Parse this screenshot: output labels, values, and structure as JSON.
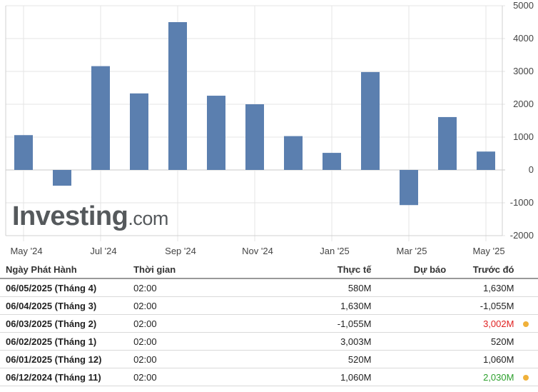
{
  "colors": {
    "bar": "#5b7faf",
    "grid": "#e4e4e4",
    "negative": "#e02020",
    "positive": "#2ca02c",
    "dot": "#f0b13a"
  },
  "logo": {
    "main": "Investing",
    "domain": ".com"
  },
  "chart_data": {
    "type": "bar",
    "categories": [
      "May '24",
      "Jun '24",
      "Jul '24",
      "Aug '24",
      "Sep '24",
      "Oct '24",
      "Nov '24",
      "Dec '24",
      "Jan '25",
      "Feb '25",
      "Mar '25",
      "Apr '25",
      "May '25"
    ],
    "x_tick_labels": [
      "May '24",
      "Jul '24",
      "Sep '24",
      "Nov '24",
      "Jan '25",
      "Mar '25",
      "May '25"
    ],
    "values": [
      1060,
      -480,
      3160,
      2330,
      4500,
      2260,
      2000,
      1030,
      520,
      2980,
      -1070,
      1610,
      560
    ],
    "y_ticks": [
      5000,
      4000,
      3000,
      2000,
      1000,
      0,
      -1000,
      -2000
    ],
    "ylim": [
      -2000,
      5000
    ],
    "grid": true,
    "y_axis_side": "right",
    "title": "",
    "xlabel": "",
    "ylabel": ""
  },
  "table": {
    "headers": {
      "date": "Ngày Phát Hành",
      "time": "Thời gian",
      "actual": "Thực tế",
      "forecast": "Dự báo",
      "previous": "Trước đó"
    },
    "rows": [
      {
        "date": "06/05/2025 (Tháng 4)",
        "time": "02:00",
        "actual": "580M",
        "forecast": "",
        "previous": "1,630M",
        "prev_status": "",
        "dot": false
      },
      {
        "date": "06/04/2025 (Tháng 3)",
        "time": "02:00",
        "actual": "1,630M",
        "forecast": "",
        "previous": "-1,055M",
        "prev_status": "",
        "dot": false
      },
      {
        "date": "06/03/2025 (Tháng 2)",
        "time": "02:00",
        "actual": "-1,055M",
        "forecast": "",
        "previous": "3,002M",
        "prev_status": "negative",
        "dot": true
      },
      {
        "date": "06/02/2025 (Tháng 1)",
        "time": "02:00",
        "actual": "3,003M",
        "forecast": "",
        "previous": "520M",
        "prev_status": "",
        "dot": false
      },
      {
        "date": "06/01/2025 (Tháng 12)",
        "time": "02:00",
        "actual": "520M",
        "forecast": "",
        "previous": "1,060M",
        "prev_status": "",
        "dot": false
      },
      {
        "date": "06/12/2024 (Tháng 11)",
        "time": "02:00",
        "actual": "1,060M",
        "forecast": "",
        "previous": "2,030M",
        "prev_status": "positive",
        "dot": true
      }
    ]
  }
}
